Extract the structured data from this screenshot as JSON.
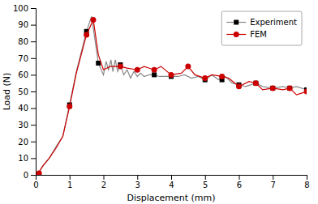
{
  "chart_data": {
    "type": "line",
    "xlabel": "Displacement (mm)",
    "ylabel": "Load (N)",
    "xlim": [
      0,
      8
    ],
    "ylim": [
      0,
      100
    ],
    "xticks": [
      0,
      1,
      2,
      3,
      4,
      5,
      6,
      7,
      8
    ],
    "yticks": [
      0,
      10,
      20,
      30,
      40,
      50,
      60,
      70,
      80,
      90,
      100
    ],
    "grid": false,
    "legend": "upper right",
    "series": [
      {
        "type": "line",
        "color": "#888888",
        "x": [
          0,
          0.08,
          0.2,
          0.4,
          0.6,
          0.8,
          1.0,
          1.2,
          1.5,
          1.65,
          1.85,
          2.0,
          2.08,
          2.15,
          2.22,
          2.28,
          2.35,
          2.42,
          2.5,
          2.6,
          2.7,
          2.8,
          2.9,
          3.0,
          3.1,
          3.2,
          3.35,
          3.5,
          3.65,
          3.8,
          4.0,
          4.2,
          4.4,
          4.6,
          4.8,
          5.0,
          5.2,
          5.4,
          5.6,
          5.8,
          6.0,
          6.2,
          6.5,
          6.7,
          7.0,
          7.3,
          7.5,
          7.7,
          8.0
        ],
        "values": [
          0,
          1,
          5,
          10,
          17,
          23,
          42,
          62,
          86,
          95,
          67,
          60,
          68,
          63,
          69,
          62,
          69,
          62,
          66,
          60,
          63,
          58,
          62,
          59,
          61,
          59,
          60,
          60,
          59,
          59,
          59,
          59,
          60,
          58,
          59,
          57,
          60,
          57,
          59,
          55,
          54,
          53,
          55,
          53,
          52,
          53,
          52,
          53,
          51
        ]
      },
      {
        "name": "Experiment",
        "type": "scatter",
        "marker": "square",
        "color": "#000000",
        "x": [
          0,
          1.0,
          1.5,
          1.85,
          2.5,
          3.5,
          4.0,
          5.0,
          5.5,
          6.0,
          6.5,
          7.0,
          7.5,
          8.0
        ],
        "values": [
          0,
          42,
          86,
          67,
          66,
          60,
          59,
          57,
          57,
          54,
          55,
          52,
          52,
          51
        ]
      },
      {
        "type": "line",
        "color": "#cc0000",
        "x": [
          0,
          0.08,
          0.2,
          0.4,
          0.6,
          0.8,
          1.0,
          1.2,
          1.5,
          1.7,
          1.85,
          2.0,
          2.2,
          2.5,
          2.7,
          3.0,
          3.2,
          3.5,
          3.7,
          4.0,
          4.3,
          4.5,
          4.7,
          5.0,
          5.2,
          5.5,
          5.7,
          6.0,
          6.3,
          6.5,
          6.7,
          7.0,
          7.3,
          7.5,
          7.7,
          8.0
        ],
        "values": [
          0,
          1,
          5,
          10,
          16,
          23,
          41,
          61,
          84,
          93,
          72,
          63,
          65,
          65,
          64,
          63,
          65,
          63,
          65,
          60,
          61,
          65,
          60,
          58,
          60,
          59,
          58,
          53,
          56,
          55,
          51,
          52,
          51,
          52,
          48,
          50
        ]
      },
      {
        "name": "FEM",
        "type": "scatter",
        "marker": "circle",
        "color": "#cc0000",
        "x": [
          0.1,
          1.0,
          1.5,
          1.7,
          2.5,
          3.0,
          3.5,
          4.0,
          4.5,
          5.0,
          5.5,
          6.0,
          6.5,
          7.0,
          7.5,
          8.0
        ],
        "values": [
          1,
          41,
          84,
          93,
          65,
          63,
          63,
          60,
          65,
          58,
          59,
          53,
          55,
          52,
          52,
          50
        ]
      }
    ]
  }
}
